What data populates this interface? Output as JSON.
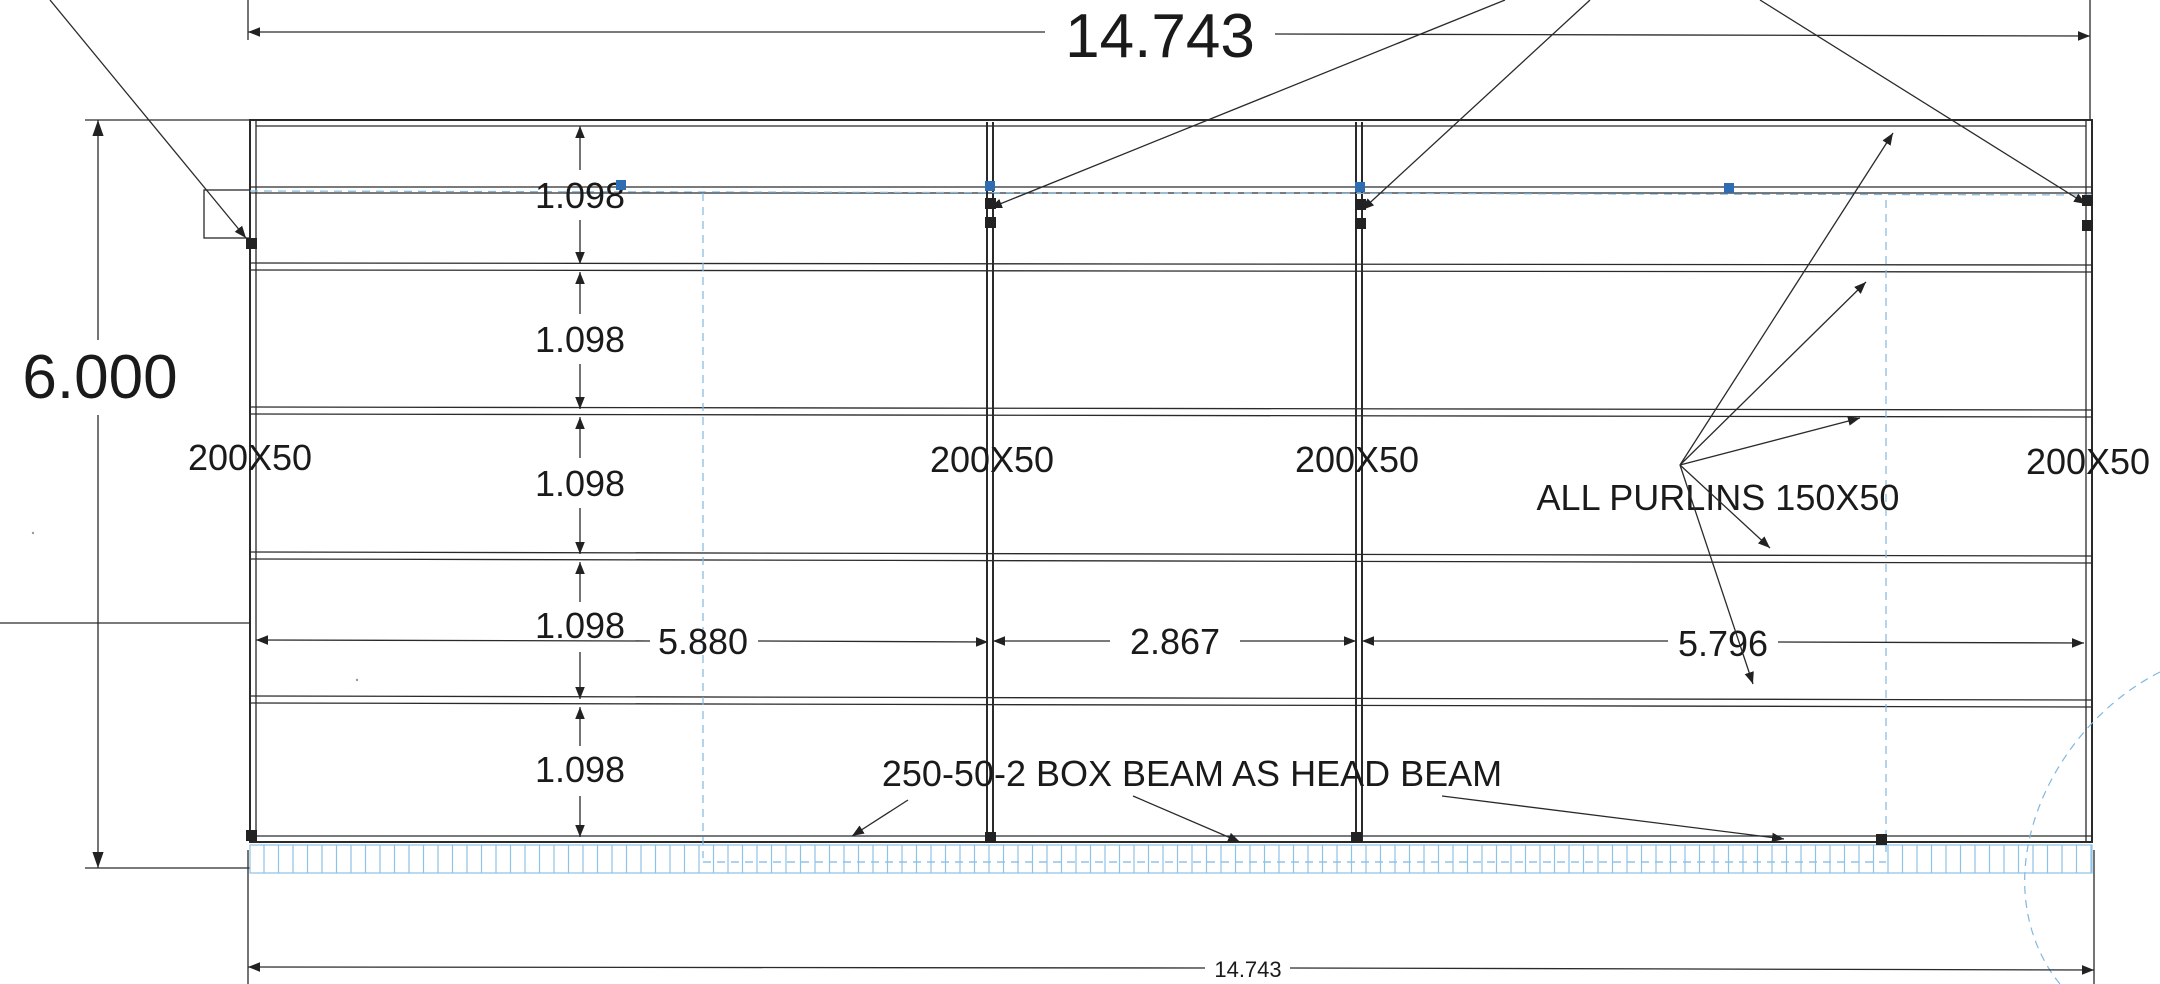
{
  "overall_dimensions": {
    "top_width": "14.743",
    "bottom_width": "14.743",
    "height": "6.000"
  },
  "purlin_spacings": [
    "1.098",
    "1.098",
    "1.098",
    "1.098",
    "1.098"
  ],
  "bay_spans": [
    "5.880",
    "2.867",
    "5.796"
  ],
  "rafter_labels": [
    "200X50",
    "200X50",
    "200X50",
    "200X50"
  ],
  "notes": {
    "purlins": "ALL PURLINS 150X50",
    "head_beam": "250-50-2 BOX BEAM AS HEAD BEAM"
  },
  "colors": {
    "line": "#2a2a2a",
    "construction": "#7fb8e0",
    "grip": "#2f6db2"
  }
}
